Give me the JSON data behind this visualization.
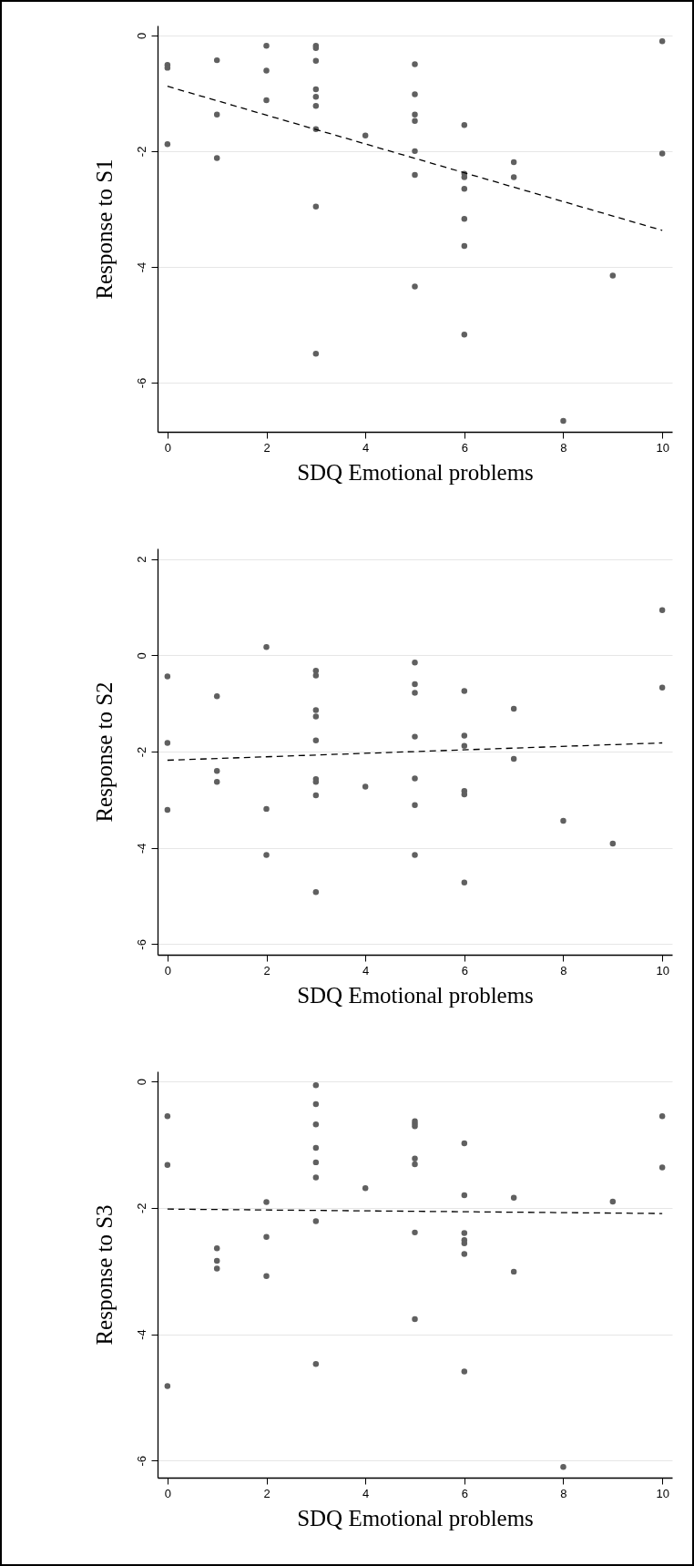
{
  "chart_data": [
    {
      "type": "scatter",
      "xlabel": "SDQ Emotional problems",
      "ylabel": "Response to S1",
      "xlim": [
        -0.2,
        10.2
      ],
      "ylim": [
        -6.85,
        0.17
      ],
      "xticks": [
        0,
        2,
        4,
        6,
        8,
        10
      ],
      "yticks": [
        0,
        -2,
        -4,
        -6
      ],
      "grid": "y",
      "marker": "circle",
      "series": [
        {
          "color": "#606060",
          "x": [
            0,
            0,
            0,
            1,
            1,
            1,
            2,
            2,
            2,
            3,
            3,
            3,
            3,
            3,
            3,
            3,
            3,
            3,
            4,
            5,
            5,
            5,
            5,
            5,
            5,
            5,
            6,
            6,
            6,
            6,
            6,
            6,
            6,
            7,
            7,
            8,
            9,
            10,
            10
          ],
          "values": [
            -0.51,
            -0.56,
            -1.88,
            -0.43,
            -1.37,
            -2.12,
            -0.18,
            -0.61,
            -1.12,
            -0.18,
            -0.22,
            -0.44,
            -0.93,
            -1.06,
            -1.22,
            -1.62,
            -2.96,
            -5.5,
            -1.73,
            -0.5,
            -1.02,
            -1.37,
            -1.48,
            -2.0,
            -2.41,
            -4.34,
            -1.55,
            -2.39,
            -2.45,
            -2.65,
            -3.17,
            -3.64,
            -5.17,
            -2.19,
            -2.45,
            -6.66,
            -4.15,
            -0.1,
            -2.04
          ]
        },
        {
          "type": "line",
          "color": "#000000",
          "line_style": "dashed",
          "marker": "none",
          "x": [
            0,
            10
          ],
          "values": [
            -0.88,
            -3.37
          ]
        }
      ]
    },
    {
      "type": "scatter",
      "xlabel": "SDQ Emotional problems",
      "ylabel": "Response to S2",
      "xlim": [
        -0.2,
        10.2
      ],
      "ylim": [
        -6.22,
        2.22
      ],
      "xticks": [
        0,
        2,
        4,
        6,
        8,
        10
      ],
      "yticks": [
        2,
        0,
        -2,
        -4,
        -6
      ],
      "grid": "y",
      "marker": "circle",
      "series": [
        {
          "color": "#606060",
          "x": [
            0,
            0,
            0,
            1,
            1,
            1,
            2,
            2,
            2,
            3,
            3,
            3,
            3,
            3,
            3,
            3,
            3,
            3,
            4,
            5,
            5,
            5,
            5,
            5,
            5,
            5,
            6,
            6,
            6,
            6,
            6,
            6,
            7,
            7,
            8,
            9,
            10,
            10
          ],
          "values": [
            -0.44,
            -1.82,
            -3.21,
            -0.85,
            -2.4,
            -2.63,
            0.17,
            -3.19,
            -4.15,
            -0.32,
            -0.42,
            -1.14,
            -1.27,
            -1.77,
            -2.57,
            -2.63,
            -2.91,
            -4.92,
            -2.73,
            -0.15,
            -0.6,
            -0.78,
            -1.69,
            -2.56,
            -3.11,
            -4.15,
            -0.74,
            -1.67,
            -1.88,
            -2.82,
            -2.89,
            -4.72,
            -1.11,
            -2.15,
            -3.44,
            -3.91,
            0.94,
            -0.67
          ]
        },
        {
          "type": "line",
          "color": "#000000",
          "line_style": "dashed",
          "marker": "none",
          "x": [
            0,
            10
          ],
          "values": [
            -2.18,
            -1.82
          ]
        }
      ]
    },
    {
      "type": "scatter",
      "xlabel": "SDQ Emotional problems",
      "ylabel": "Response to S3",
      "xlim": [
        -0.2,
        10.2
      ],
      "ylim": [
        -6.27,
        0.16
      ],
      "xticks": [
        0,
        2,
        4,
        6,
        8,
        10
      ],
      "yticks": [
        0,
        -2,
        -4,
        -6
      ],
      "grid": "y",
      "marker": "circle",
      "series": [
        {
          "color": "#606060",
          "x": [
            0,
            0,
            0,
            1,
            1,
            1,
            2,
            2,
            2,
            3,
            3,
            3,
            3,
            3,
            3,
            3,
            3,
            4,
            5,
            5,
            5,
            5,
            5,
            5,
            5,
            6,
            6,
            6,
            6,
            6,
            6,
            6,
            7,
            7,
            8,
            9,
            10,
            10
          ],
          "values": [
            -0.55,
            -1.32,
            -4.82,
            -2.64,
            -2.84,
            -2.96,
            -1.91,
            -2.46,
            -3.08,
            -0.06,
            -0.36,
            -0.68,
            -1.05,
            -1.28,
            -1.52,
            -2.21,
            -4.47,
            -1.69,
            -0.63,
            -0.67,
            -0.71,
            -1.22,
            -1.31,
            -2.39,
            -3.76,
            -0.98,
            -1.8,
            -2.4,
            -2.51,
            -2.56,
            -2.73,
            -4.59,
            -1.84,
            -3.01,
            -6.1,
            -1.9,
            -0.55,
            -1.36
          ]
        },
        {
          "type": "line",
          "color": "#000000",
          "line_style": "dashed",
          "marker": "none",
          "x": [
            0,
            10
          ],
          "values": [
            -2.02,
            -2.09
          ]
        }
      ]
    }
  ]
}
